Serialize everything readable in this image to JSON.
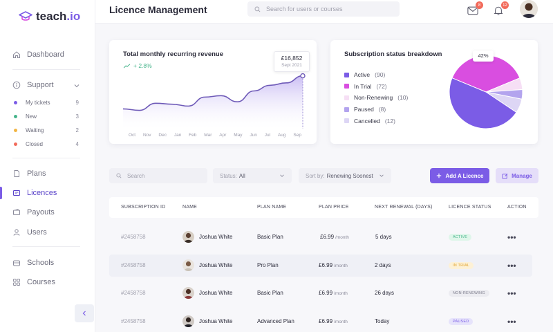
{
  "brand": {
    "name": "teach",
    "suffix": ".io"
  },
  "header": {
    "title": "Licence Management",
    "search_placeholder": "Search for users or courses",
    "mail_count": "8",
    "bell_count": "12"
  },
  "sidebar": {
    "dashboard": "Dashboard",
    "support": "Support",
    "support_items": [
      {
        "label": "My tickets",
        "count": "9",
        "color": "#7b5ce6"
      },
      {
        "label": "New",
        "count": "3",
        "color": "#46b48b"
      },
      {
        "label": "Waiting",
        "count": "2",
        "color": "#f2b544"
      },
      {
        "label": "Closed",
        "count": "4",
        "color": "#f26b5b"
      }
    ],
    "plans": "Plans",
    "licences": "Licences",
    "payouts": "Payouts",
    "users": "Users",
    "schools": "Schools",
    "courses": "Courses"
  },
  "revenue": {
    "title": "Total monthly recurring revenue",
    "growth": "+ 2.8%",
    "tooltip_value": "£16,852",
    "tooltip_date": "Sept 2021"
  },
  "breakdown": {
    "title": "Subscription status breakdown",
    "callout": "42%",
    "legend": [
      {
        "label": "Active",
        "count": "(90)",
        "color": "#7b5ce6"
      },
      {
        "label": "In Trial",
        "count": "(72)",
        "color": "#d94ee0"
      },
      {
        "label": "Non-Renewing",
        "count": "(10)",
        "color": "#f6dff5"
      },
      {
        "label": "Paused",
        "count": "(8)",
        "color": "#b3a4ee"
      },
      {
        "label": "Cancelled",
        "count": "(12)",
        "color": "#ddd6f5"
      }
    ]
  },
  "chart_data": [
    {
      "type": "area",
      "title": "Total monthly recurring revenue",
      "categories": [
        "Oct",
        "Nov",
        "Dec",
        "Jan",
        "Feb",
        "Mar",
        "Apr",
        "May",
        "Jun",
        "Jul",
        "Aug",
        "Sep"
      ],
      "values": [
        0.3,
        0.27,
        0.42,
        0.4,
        0.36,
        0.55,
        0.58,
        0.45,
        0.68,
        0.8,
        0.85,
        1.0
      ],
      "highlight": {
        "category": "Sep",
        "label": "£16,852",
        "date": "Sept 2021"
      },
      "grid": false
    },
    {
      "type": "pie",
      "title": "Subscription status breakdown",
      "categories": [
        "Active",
        "In Trial",
        "Non-Renewing",
        "Paused",
        "Cancelled"
      ],
      "values": [
        90,
        72,
        10,
        8,
        12
      ],
      "colors": [
        "#7b5ce6",
        "#d94ee0",
        "#f6dff5",
        "#b3a4ee",
        "#ddd6f5"
      ],
      "legend": "left"
    }
  ],
  "filters": {
    "search_placeholder": "Search",
    "status_label": "Status:",
    "status_value": "All",
    "sort_label": "Sort by:",
    "sort_value": "Renewing Soonest",
    "add_label": "Add A Licence",
    "manage_label": "Manage"
  },
  "table": {
    "headers": [
      "SUBSCRIPTION ID",
      "NAME",
      "PLAN NAME",
      "PLAN PRICE",
      "NEXT RENEWAL (DAYS)",
      "LICENCE STATUS",
      "ACTION"
    ],
    "rows": [
      {
        "id": "#2458758",
        "name": "Joshua White",
        "plan": "Basic Plan",
        "price": "£6.99",
        "per": "/month",
        "renewal": "5 days",
        "status": "ACTIVE",
        "status_bg": "#dff6ea",
        "status_fg": "#46b48b",
        "actions": "•••"
      },
      {
        "id": "#2458758",
        "name": "Joshua White",
        "plan": "Pro Plan",
        "price": "£6.99",
        "per": "/month",
        "renewal": "2 days",
        "status": "IN TRIAL",
        "status_bg": "#fdf1d6",
        "status_fg": "#e0a12a",
        "actions": "•••"
      },
      {
        "id": "#2458758",
        "name": "Joshua White",
        "plan": "Basic Plan",
        "price": "£6.99",
        "per": "/month",
        "renewal": "26 days",
        "status": "NON-RENEWING",
        "status_bg": "#ececf1",
        "status_fg": "#7a7a8a",
        "actions": "•••"
      },
      {
        "id": "#2458758",
        "name": "Joshua White",
        "plan": "Advanced Plan",
        "price": "£6.99",
        "per": "/month",
        "renewal": "Today",
        "status": "PAUSED",
        "status_bg": "#e6e3fb",
        "status_fg": "#7b5ce6",
        "actions": "•••"
      }
    ]
  }
}
